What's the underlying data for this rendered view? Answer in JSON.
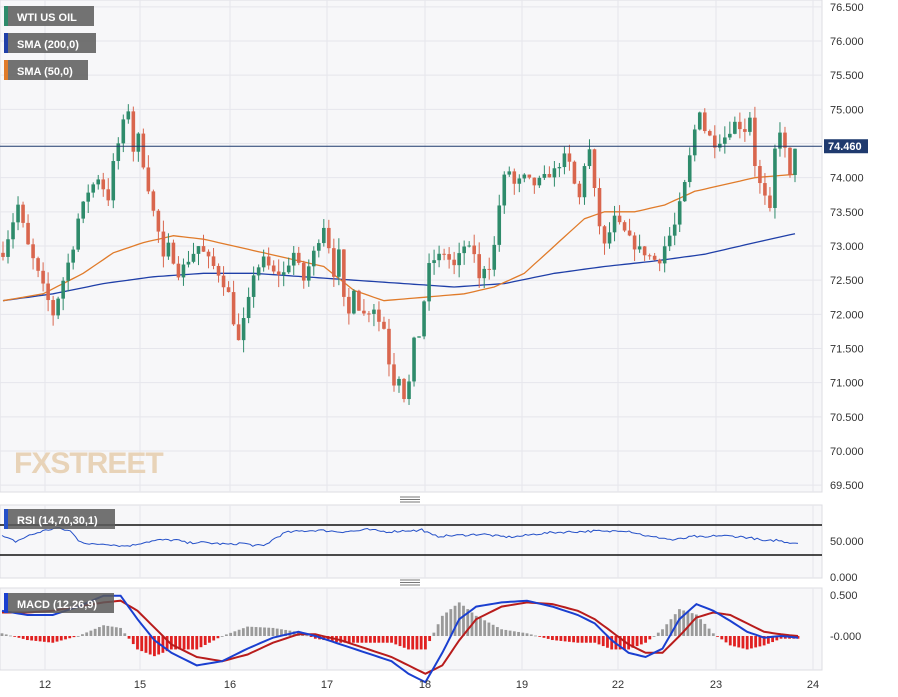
{
  "legend": {
    "instrument": "WTI US OIL",
    "sma200": "SMA (200,0)",
    "sma50": "SMA (50,0)"
  },
  "logo": "FXSTREET",
  "current_price_label": "74.460",
  "rsi": {
    "label": "RSI (14,70,30,1)",
    "ticks": [
      "50.000",
      "0.000"
    ]
  },
  "macd": {
    "label": "MACD (12,26,9)",
    "ticks": [
      "0.500",
      "-0.000"
    ]
  },
  "colors": {
    "candle_up": "#2e8b6b",
    "candle_down": "#d9664e",
    "sma200": "#1f3fa8",
    "sma50": "#e07b2a",
    "rsi_line": "#2450c8",
    "macd_line": "#1a3fd0",
    "signal_line": "#b81c1c",
    "hist_pos": "#9a9a9a",
    "hist_neg": "#e02020"
  },
  "chart_data": {
    "type": "candlestick",
    "ylim": [
      69.4,
      76.6
    ],
    "yticks": [
      "76.500",
      "76.000",
      "75.500",
      "75.000",
      "74.500",
      "74.000",
      "73.500",
      "73.000",
      "72.500",
      "72.000",
      "71.500",
      "71.000",
      "70.500",
      "70.000",
      "69.500"
    ],
    "xticks": [
      "12",
      "15",
      "16",
      "17",
      "18",
      "19",
      "22",
      "23",
      "24"
    ],
    "current_price": 74.46,
    "close_path": [
      [
        0,
        72.9
      ],
      [
        3,
        73.6
      ],
      [
        5,
        73.0
      ],
      [
        8,
        72.4
      ],
      [
        10,
        72.0
      ],
      [
        12,
        72.5
      ],
      [
        14,
        73.0
      ],
      [
        15,
        73.4
      ],
      [
        17,
        73.8
      ],
      [
        19,
        74.0
      ],
      [
        21,
        73.7
      ],
      [
        22,
        74.2
      ],
      [
        24,
        74.8
      ],
      [
        25,
        75.0
      ],
      [
        26,
        74.4
      ],
      [
        27,
        74.6
      ],
      [
        28,
        74.2
      ],
      [
        30,
        73.5
      ],
      [
        31,
        73.2
      ],
      [
        32,
        72.8
      ],
      [
        33,
        73.0
      ],
      [
        35,
        72.6
      ],
      [
        37,
        72.8
      ],
      [
        39,
        73.0
      ],
      [
        41,
        72.8
      ],
      [
        43,
        72.6
      ],
      [
        45,
        72.3
      ],
      [
        46,
        71.9
      ],
      [
        47,
        71.6
      ],
      [
        48,
        71.9
      ],
      [
        49,
        72.2
      ],
      [
        50,
        72.6
      ],
      [
        52,
        72.8
      ],
      [
        54,
        72.6
      ],
      [
        56,
        72.6
      ],
      [
        58,
        72.9
      ],
      [
        60,
        72.5
      ],
      [
        62,
        72.9
      ],
      [
        64,
        73.3
      ],
      [
        65,
        73.0
      ],
      [
        66,
        72.6
      ],
      [
        67,
        72.9
      ],
      [
        68,
        72.2
      ],
      [
        69,
        72.0
      ],
      [
        70,
        72.4
      ],
      [
        71,
        72.1
      ],
      [
        72,
        72.0
      ],
      [
        74,
        72.1
      ],
      [
        75,
        71.9
      ],
      [
        76,
        71.8
      ],
      [
        77,
        71.3
      ],
      [
        78,
        71.0
      ],
      [
        79,
        71.1
      ],
      [
        80,
        70.8
      ],
      [
        81,
        71.0
      ],
      [
        82,
        71.6
      ],
      [
        83,
        71.7
      ],
      [
        84,
        72.2
      ],
      [
        85,
        72.7
      ],
      [
        86,
        72.8
      ],
      [
        88,
        72.9
      ],
      [
        90,
        72.7
      ],
      [
        92,
        73.0
      ],
      [
        94,
        72.9
      ],
      [
        95,
        72.5
      ],
      [
        96,
        72.7
      ],
      [
        97,
        72.7
      ],
      [
        98,
        73.0
      ],
      [
        99,
        73.6
      ],
      [
        100,
        74.0
      ],
      [
        101,
        74.1
      ],
      [
        102,
        73.9
      ],
      [
        104,
        74.0
      ],
      [
        106,
        73.9
      ],
      [
        108,
        74.0
      ],
      [
        110,
        74.1
      ],
      [
        112,
        74.3
      ],
      [
        113,
        74.2
      ],
      [
        114,
        73.9
      ],
      [
        115,
        73.7
      ],
      [
        116,
        74.2
      ],
      [
        117,
        74.4
      ],
      [
        118,
        73.8
      ],
      [
        119,
        73.3
      ],
      [
        120,
        73.0
      ],
      [
        121,
        73.2
      ],
      [
        122,
        73.4
      ],
      [
        124,
        73.2
      ],
      [
        126,
        73.0
      ],
      [
        128,
        72.9
      ],
      [
        130,
        72.8
      ],
      [
        131,
        72.8
      ],
      [
        132,
        73.0
      ],
      [
        134,
        73.3
      ],
      [
        135,
        73.6
      ],
      [
        136,
        73.9
      ],
      [
        137,
        74.3
      ],
      [
        138,
        74.7
      ],
      [
        139,
        75.0
      ],
      [
        140,
        74.7
      ],
      [
        142,
        74.5
      ],
      [
        144,
        74.6
      ],
      [
        146,
        74.8
      ],
      [
        148,
        74.7
      ],
      [
        149,
        74.9
      ],
      [
        150,
        74.2
      ],
      [
        151,
        73.9
      ],
      [
        152,
        73.7
      ],
      [
        153,
        73.5
      ],
      [
        154,
        74.4
      ],
      [
        155,
        74.7
      ],
      [
        156,
        74.4
      ],
      [
        157,
        74.0
      ],
      [
        158,
        74.46
      ]
    ],
    "sma50_path": [
      [
        0,
        72.2
      ],
      [
        8,
        72.3
      ],
      [
        16,
        72.6
      ],
      [
        22,
        72.9
      ],
      [
        28,
        73.05
      ],
      [
        34,
        73.15
      ],
      [
        40,
        73.1
      ],
      [
        46,
        73.0
      ],
      [
        52,
        72.9
      ],
      [
        58,
        72.8
      ],
      [
        64,
        72.7
      ],
      [
        70,
        72.35
      ],
      [
        76,
        72.2
      ],
      [
        84,
        72.25
      ],
      [
        92,
        72.3
      ],
      [
        98,
        72.4
      ],
      [
        104,
        72.6
      ],
      [
        110,
        73.0
      ],
      [
        116,
        73.4
      ],
      [
        120,
        73.5
      ],
      [
        126,
        73.5
      ],
      [
        132,
        73.6
      ],
      [
        138,
        73.8
      ],
      [
        144,
        73.9
      ],
      [
        150,
        74.0
      ],
      [
        158,
        74.05
      ]
    ],
    "sma200_path": [
      [
        0,
        72.2
      ],
      [
        10,
        72.3
      ],
      [
        20,
        72.45
      ],
      [
        30,
        72.55
      ],
      [
        40,
        72.6
      ],
      [
        50,
        72.6
      ],
      [
        60,
        72.55
      ],
      [
        70,
        72.5
      ],
      [
        80,
        72.45
      ],
      [
        90,
        72.4
      ],
      [
        100,
        72.45
      ],
      [
        110,
        72.6
      ],
      [
        120,
        72.7
      ],
      [
        130,
        72.78
      ],
      [
        140,
        72.88
      ],
      [
        150,
        73.05
      ],
      [
        158,
        73.18
      ]
    ],
    "rsi_ylim": [
      0,
      100
    ],
    "rsi_levels": [
      70,
      30
    ],
    "rsi_path": [
      [
        0,
        55
      ],
      [
        5,
        48
      ],
      [
        10,
        56
      ],
      [
        15,
        62
      ],
      [
        20,
        66
      ],
      [
        25,
        62
      ],
      [
        28,
        50
      ],
      [
        32,
        44
      ],
      [
        38,
        45
      ],
      [
        44,
        42
      ],
      [
        48,
        43
      ],
      [
        52,
        47
      ],
      [
        58,
        50
      ],
      [
        64,
        50
      ],
      [
        68,
        46
      ],
      [
        72,
        47
      ],
      [
        76,
        46
      ],
      [
        80,
        45
      ],
      [
        84,
        44
      ],
      [
        88,
        46
      ],
      [
        92,
        43
      ],
      [
        96,
        42
      ],
      [
        100,
        52
      ],
      [
        104,
        60
      ],
      [
        110,
        62
      ],
      [
        116,
        63
      ],
      [
        120,
        62
      ],
      [
        124,
        61
      ],
      [
        130,
        62
      ],
      [
        134,
        64
      ],
      [
        138,
        62
      ],
      [
        142,
        61
      ],
      [
        146,
        62
      ],
      [
        150,
        63
      ],
      [
        152,
        62
      ],
      [
        154,
        64
      ],
      [
        156,
        60
      ],
      [
        158,
        56
      ],
      [
        160,
        55
      ],
      [
        166,
        56
      ],
      [
        172,
        57
      ],
      [
        176,
        58
      ],
      [
        182,
        55
      ],
      [
        186,
        54
      ],
      [
        190,
        55
      ],
      [
        196,
        58
      ],
      [
        202,
        60
      ],
      [
        210,
        61
      ],
      [
        218,
        62
      ],
      [
        222,
        61
      ],
      [
        226,
        63
      ],
      [
        230,
        62
      ],
      [
        234,
        58
      ],
      [
        238,
        54
      ],
      [
        242,
        53
      ],
      [
        246,
        50
      ],
      [
        250,
        52
      ],
      [
        254,
        55
      ],
      [
        258,
        53
      ],
      [
        262,
        56
      ],
      [
        268,
        55
      ],
      [
        272,
        54
      ],
      [
        276,
        52
      ],
      [
        280,
        48
      ],
      [
        284,
        50
      ],
      [
        288,
        47
      ],
      [
        292,
        46
      ]
    ],
    "macd_ylim": [
      -0.8,
      0.6
    ],
    "macd_line": [
      [
        0,
        0.3
      ],
      [
        6,
        0.25
      ],
      [
        12,
        0.25
      ],
      [
        18,
        0.35
      ],
      [
        24,
        0.48
      ],
      [
        28,
        0.48
      ],
      [
        32,
        0.2
      ],
      [
        36,
        -0.05
      ],
      [
        40,
        -0.2
      ],
      [
        46,
        -0.35
      ],
      [
        52,
        -0.3
      ],
      [
        58,
        -0.15
      ],
      [
        64,
        -0.02
      ],
      [
        70,
        0.05
      ],
      [
        74,
        0.0
      ],
      [
        80,
        -0.1
      ],
      [
        86,
        -0.2
      ],
      [
        92,
        -0.3
      ],
      [
        96,
        -0.45
      ],
      [
        100,
        -0.55
      ],
      [
        104,
        -0.2
      ],
      [
        108,
        0.2
      ],
      [
        112,
        0.35
      ],
      [
        118,
        0.4
      ],
      [
        124,
        0.42
      ],
      [
        130,
        0.35
      ],
      [
        136,
        0.25
      ],
      [
        140,
        0.15
      ],
      [
        144,
        -0.05
      ],
      [
        148,
        -0.2
      ],
      [
        152,
        -0.25
      ],
      [
        156,
        -0.15
      ],
      [
        160,
        0.2
      ],
      [
        164,
        0.38
      ],
      [
        168,
        0.3
      ],
      [
        172,
        0.18
      ],
      [
        176,
        0.05
      ],
      [
        180,
        -0.02
      ],
      [
        184,
        0.0
      ],
      [
        188,
        -0.02
      ]
    ],
    "signal_line": [
      [
        0,
        0.28
      ],
      [
        6,
        0.28
      ],
      [
        12,
        0.3
      ],
      [
        18,
        0.35
      ],
      [
        24,
        0.4
      ],
      [
        28,
        0.42
      ],
      [
        32,
        0.3
      ],
      [
        36,
        0.1
      ],
      [
        40,
        -0.1
      ],
      [
        46,
        -0.25
      ],
      [
        52,
        -0.3
      ],
      [
        58,
        -0.22
      ],
      [
        64,
        -0.08
      ],
      [
        70,
        0.02
      ],
      [
        74,
        0.02
      ],
      [
        80,
        -0.05
      ],
      [
        86,
        -0.15
      ],
      [
        92,
        -0.25
      ],
      [
        96,
        -0.35
      ],
      [
        100,
        -0.45
      ],
      [
        104,
        -0.35
      ],
      [
        108,
        -0.05
      ],
      [
        112,
        0.2
      ],
      [
        118,
        0.35
      ],
      [
        124,
        0.4
      ],
      [
        130,
        0.38
      ],
      [
        136,
        0.3
      ],
      [
        140,
        0.2
      ],
      [
        144,
        0.05
      ],
      [
        148,
        -0.1
      ],
      [
        152,
        -0.2
      ],
      [
        156,
        -0.2
      ],
      [
        160,
        0.0
      ],
      [
        164,
        0.22
      ],
      [
        168,
        0.28
      ],
      [
        172,
        0.25
      ],
      [
        176,
        0.15
      ],
      [
        180,
        0.05
      ],
      [
        184,
        0.02
      ],
      [
        188,
        0.0
      ]
    ]
  }
}
